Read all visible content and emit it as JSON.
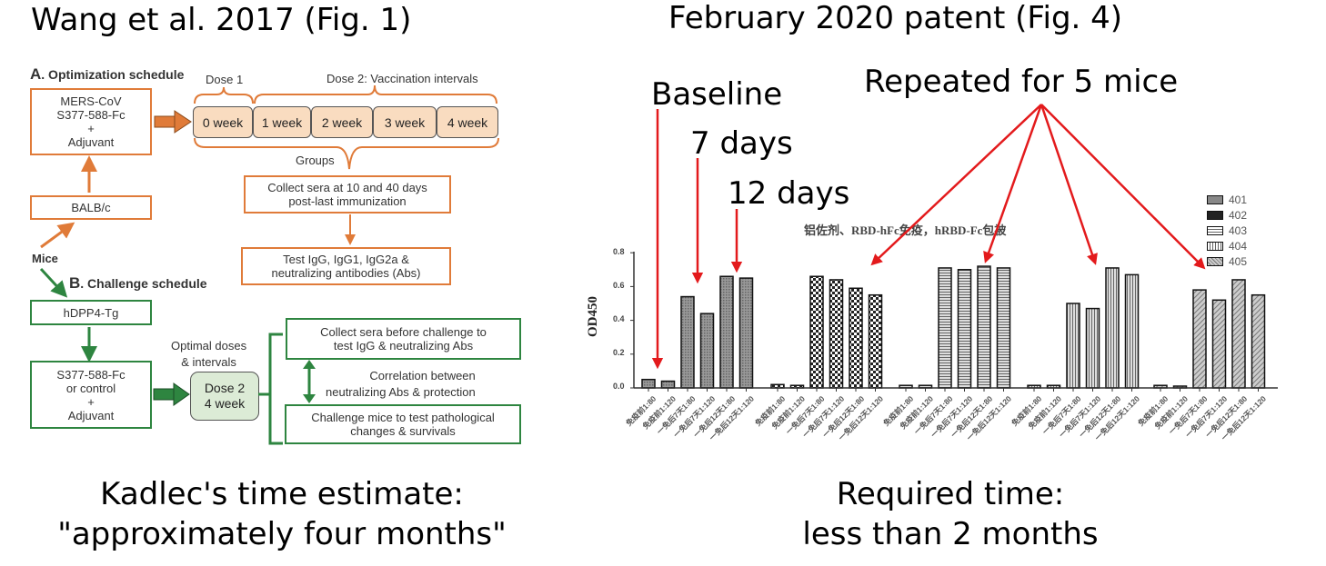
{
  "headings": {
    "left": "Wang et al. 2017 (Fig. 1)",
    "right": "February 2020 patent (Fig. 4)"
  },
  "captions": {
    "left_line1": "Kadlec's time estimate:",
    "left_line2": "\"approximately four months\"",
    "right_line1": "Required time:",
    "right_line2": "less than 2 months"
  },
  "diagram": {
    "section_a": {
      "letter": "A",
      "title": ". Optimization schedule"
    },
    "section_b": {
      "letter": "B",
      "title": ". Challenge schedule"
    },
    "antigen_box": {
      "line1": "MERS-CoV",
      "line2": "S377-588-Fc",
      "line3": "+",
      "line4": "Adjuvant"
    },
    "balbc_box": "BALB/c",
    "mice_label": "Mice",
    "dose1_label": "Dose 1",
    "dose2_label": "Dose 2: Vaccination intervals",
    "weeks": [
      "0 week",
      "1 week",
      "2 week",
      "3 week",
      "4 week"
    ],
    "groups_label": "Groups",
    "collect_box": {
      "line1": "Collect sera at 10 and 40 days",
      "line2": "post-last immunization"
    },
    "test_box": {
      "line1": "Test IgG, IgG1, IgG2a &",
      "line2": "neutralizing antibodies (Abs)"
    },
    "hdpp4_box": "hDPP4-Tg",
    "control_box": {
      "line1": "S377-588-Fc",
      "line2": "or control",
      "line3": "+",
      "line4": "Adjuvant"
    },
    "optimal_label": {
      "line1": "Optimal doses",
      "line2": "& intervals"
    },
    "dose2_box": {
      "line1": "Dose 2",
      "line2": "4 week"
    },
    "collect_before_box": {
      "line1": "Collect sera before challenge to",
      "line2": "test IgG & neutralizing Abs"
    },
    "correlation_label": {
      "line1": "Correlation between",
      "line2": "neutralizing Abs & protection"
    },
    "challenge_box": {
      "line1": "Challenge mice to test pathological",
      "line2": "changes & survivals"
    },
    "colors": {
      "orange": "#e07b39",
      "green": "#2e8540",
      "week_fill": "#f9dcc0",
      "dose2_fill": "#dcebd6"
    }
  },
  "annotations": {
    "baseline": "Baseline",
    "seven_days": "7 days",
    "twelve_days": "12 days",
    "repeated": "Repeated for 5 mice",
    "arrow_color": "#e31a1c"
  },
  "chart_data": {
    "type": "bar",
    "title": "铝佐剂、RBD-hFc免疫，hRBD-Fc包被",
    "xlabel": "",
    "ylabel": "OD450",
    "ylim": [
      0,
      0.8
    ],
    "yticks": [
      "0.0",
      "0.2",
      "0.4",
      "0.6",
      "0.8"
    ],
    "grid": false,
    "legend_position": "top-right",
    "categories": [
      "免疫前1:80",
      "免疫前1:120",
      "一免后7天1:80",
      "一免后7天1:120",
      "一免后12天1:80",
      "一免后12天1:120"
    ],
    "series": [
      {
        "name": "401",
        "values": [
          0.05,
          0.04,
          0.54,
          0.44,
          0.66,
          0.65
        ]
      },
      {
        "name": "402",
        "values": [
          0.02,
          0.015,
          0.66,
          0.64,
          0.59,
          0.55
        ]
      },
      {
        "name": "403",
        "values": [
          0.015,
          0.015,
          0.71,
          0.7,
          0.72,
          0.71
        ]
      },
      {
        "name": "404",
        "values": [
          0.015,
          0.015,
          0.5,
          0.47,
          0.71,
          0.67
        ]
      },
      {
        "name": "405",
        "values": [
          0.015,
          0.01,
          0.58,
          0.52,
          0.64,
          0.55
        ]
      }
    ]
  }
}
